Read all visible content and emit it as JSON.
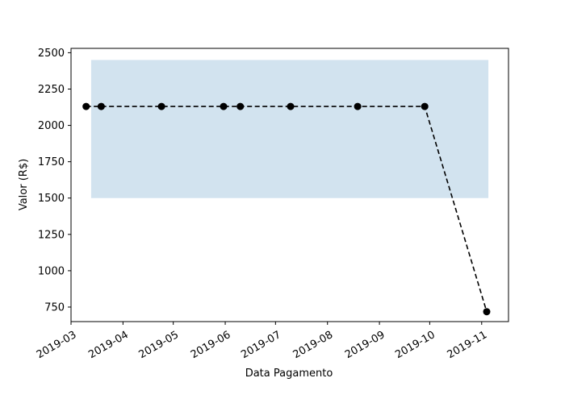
{
  "chart_data": {
    "type": "line",
    "title": "",
    "xlabel": "Data Pagamento",
    "ylabel": "Valor (R$)",
    "x_type": "date",
    "xlim": [
      "2019-03-01",
      "2019-11-17"
    ],
    "ylim": [
      650,
      2530
    ],
    "x_ticks": [
      "2019-03",
      "2019-04",
      "2019-05",
      "2019-06",
      "2019-07",
      "2019-08",
      "2019-09",
      "2019-10",
      "2019-11"
    ],
    "y_ticks": [
      750,
      1000,
      1250,
      1500,
      1750,
      2000,
      2250,
      2500
    ],
    "grid": false,
    "legend": "none",
    "band": {
      "x_start": "2019-03-13",
      "x_end": "2019-11-05",
      "y_low": 1500,
      "y_high": 2450,
      "color": "#d2e3ef"
    },
    "series": [
      {
        "color": "#000000",
        "line_style": "dashed",
        "marker": "circle",
        "points": [
          {
            "x": "2019-03-10",
            "y": 2130
          },
          {
            "x": "2019-03-19",
            "y": 2130
          },
          {
            "x": "2019-04-24",
            "y": 2130
          },
          {
            "x": "2019-05-31",
            "y": 2130
          },
          {
            "x": "2019-06-10",
            "y": 2130
          },
          {
            "x": "2019-07-10",
            "y": 2130
          },
          {
            "x": "2019-08-19",
            "y": 2130
          },
          {
            "x": "2019-09-28",
            "y": 2130
          },
          {
            "x": "2019-11-04",
            "y": 718
          }
        ]
      }
    ]
  }
}
